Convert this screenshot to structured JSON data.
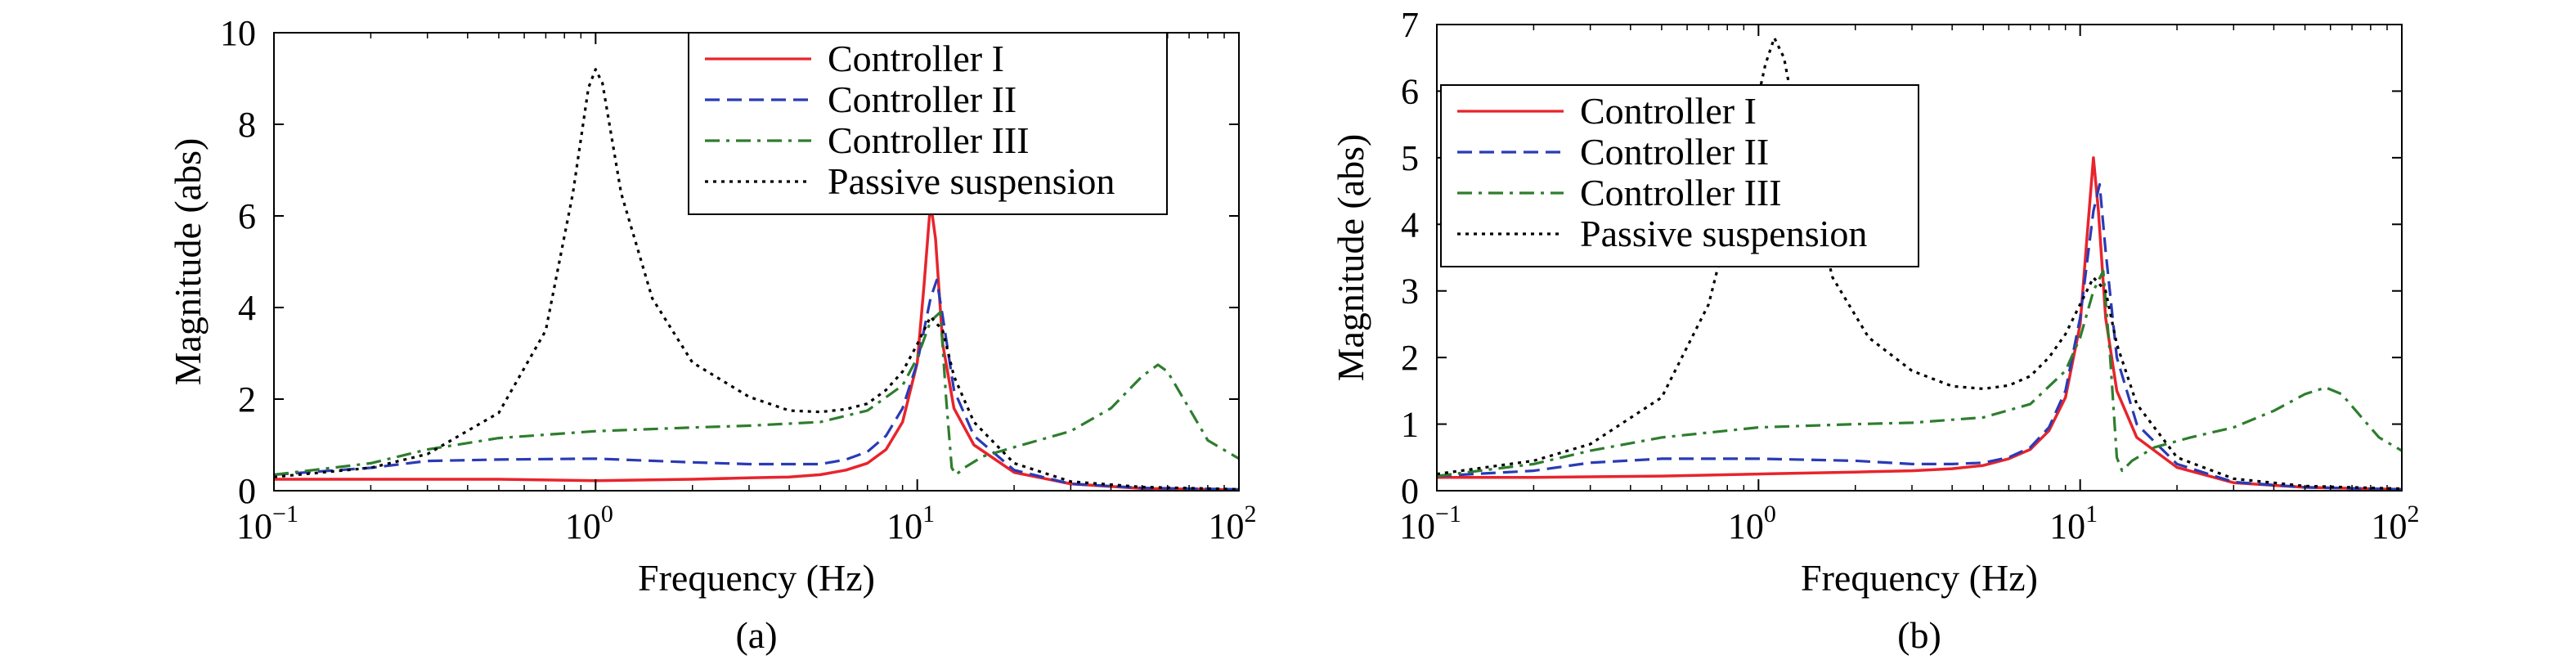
{
  "chart_data": [
    {
      "type": "line",
      "panel_label": "(a)",
      "xlabel": "Frequency (Hz)",
      "ylabel": "Magnitude (abs)",
      "xscale": "log",
      "xlim": [
        0.1,
        100
      ],
      "ylim": [
        0,
        10
      ],
      "xticks": [
        0.1,
        1,
        10,
        100
      ],
      "xtick_labels": [
        {
          "base": "10",
          "exp": "−1"
        },
        {
          "base": "10",
          "exp": "0"
        },
        {
          "base": "10",
          "exp": "1"
        },
        {
          "base": "10",
          "exp": "2"
        }
      ],
      "yticks": [
        0,
        2,
        4,
        6,
        8,
        10
      ],
      "ytick_labels": [
        "0",
        "2",
        "4",
        "6",
        "8",
        "10"
      ],
      "grid": false,
      "legend_position": "top-right",
      "series": [
        {
          "name": "Controller I",
          "color": "#e8242c",
          "dash": "solid",
          "points": [
            [
              0.1,
              0.25
            ],
            [
              0.2,
              0.25
            ],
            [
              0.5,
              0.25
            ],
            [
              1,
              0.22
            ],
            [
              2,
              0.25
            ],
            [
              3,
              0.28
            ],
            [
              4,
              0.3
            ],
            [
              5,
              0.35
            ],
            [
              6,
              0.45
            ],
            [
              7,
              0.6
            ],
            [
              8,
              0.9
            ],
            [
              9,
              1.5
            ],
            [
              10,
              2.8
            ],
            [
              10.5,
              4.5
            ],
            [
              11,
              6.3
            ],
            [
              11.4,
              5.5
            ],
            [
              12,
              3.2
            ],
            [
              13,
              1.8
            ],
            [
              15,
              1.0
            ],
            [
              20,
              0.4
            ],
            [
              30,
              0.15
            ],
            [
              50,
              0.05
            ],
            [
              100,
              0.02
            ]
          ]
        },
        {
          "name": "Controller II",
          "color": "#2a3bb5",
          "dash": "dashed",
          "points": [
            [
              0.1,
              0.35
            ],
            [
              0.2,
              0.5
            ],
            [
              0.3,
              0.65
            ],
            [
              0.5,
              0.68
            ],
            [
              1,
              0.7
            ],
            [
              2,
              0.62
            ],
            [
              3,
              0.58
            ],
            [
              5,
              0.58
            ],
            [
              6,
              0.68
            ],
            [
              7,
              0.85
            ],
            [
              8,
              1.2
            ],
            [
              9,
              1.8
            ],
            [
              10,
              2.8
            ],
            [
              11,
              4.2
            ],
            [
              11.5,
              4.6
            ],
            [
              12,
              3.8
            ],
            [
              13,
              2.2
            ],
            [
              15,
              1.2
            ],
            [
              20,
              0.45
            ],
            [
              30,
              0.15
            ],
            [
              50,
              0.06
            ],
            [
              100,
              0.03
            ]
          ]
        },
        {
          "name": "Controller III",
          "color": "#2e7d2e",
          "dash": "dashdot",
          "points": [
            [
              0.1,
              0.35
            ],
            [
              0.2,
              0.6
            ],
            [
              0.3,
              0.9
            ],
            [
              0.5,
              1.15
            ],
            [
              1,
              1.3
            ],
            [
              2,
              1.38
            ],
            [
              3,
              1.42
            ],
            [
              5,
              1.5
            ],
            [
              7,
              1.75
            ],
            [
              9,
              2.3
            ],
            [
              10,
              2.9
            ],
            [
              11,
              3.7
            ],
            [
              11.8,
              3.9
            ],
            [
              12.3,
              2.0
            ],
            [
              12.8,
              0.5
            ],
            [
              13.2,
              0.35
            ],
            [
              14,
              0.5
            ],
            [
              16,
              0.75
            ],
            [
              20,
              0.95
            ],
            [
              30,
              1.3
            ],
            [
              40,
              1.8
            ],
            [
              50,
              2.5
            ],
            [
              56,
              2.75
            ],
            [
              60,
              2.6
            ],
            [
              70,
              1.8
            ],
            [
              80,
              1.1
            ],
            [
              100,
              0.7
            ]
          ]
        },
        {
          "name": "Passive suspension",
          "color": "#000000",
          "dash": "dotted",
          "points": [
            [
              0.1,
              0.3
            ],
            [
              0.2,
              0.5
            ],
            [
              0.3,
              0.8
            ],
            [
              0.5,
              1.7
            ],
            [
              0.7,
              3.5
            ],
            [
              0.85,
              6.5
            ],
            [
              0.95,
              8.8
            ],
            [
              1,
              9.2
            ],
            [
              1.05,
              8.9
            ],
            [
              1.2,
              6.5
            ],
            [
              1.5,
              4.2
            ],
            [
              2,
              2.8
            ],
            [
              3,
              2.05
            ],
            [
              4,
              1.75
            ],
            [
              5,
              1.72
            ],
            [
              6,
              1.78
            ],
            [
              7,
              1.9
            ],
            [
              8,
              2.2
            ],
            [
              9,
              2.6
            ],
            [
              10,
              3.2
            ],
            [
              11,
              3.8
            ],
            [
              12,
              3.5
            ],
            [
              13,
              2.5
            ],
            [
              15,
              1.5
            ],
            [
              20,
              0.6
            ],
            [
              30,
              0.2
            ],
            [
              50,
              0.08
            ],
            [
              100,
              0.03
            ]
          ]
        }
      ]
    },
    {
      "type": "line",
      "panel_label": "(b)",
      "xlabel": "Frequency (Hz)",
      "ylabel": "Magnitude (abs)",
      "xscale": "log",
      "xlim": [
        0.1,
        100
      ],
      "ylim": [
        0,
        7
      ],
      "xticks": [
        0.1,
        1,
        10,
        100
      ],
      "xtick_labels": [
        {
          "base": "10",
          "exp": "−1"
        },
        {
          "base": "10",
          "exp": "0"
        },
        {
          "base": "10",
          "exp": "1"
        },
        {
          "base": "10",
          "exp": "2"
        }
      ],
      "yticks": [
        0,
        1,
        2,
        3,
        4,
        5,
        6,
        7
      ],
      "ytick_labels": [
        "0",
        "1",
        "2",
        "3",
        "4",
        "5",
        "6",
        "7"
      ],
      "grid": false,
      "legend_position": "top-left",
      "series": [
        {
          "name": "Controller I",
          "color": "#e8242c",
          "dash": "solid",
          "points": [
            [
              0.1,
              0.2
            ],
            [
              0.2,
              0.2
            ],
            [
              0.5,
              0.22
            ],
            [
              1,
              0.25
            ],
            [
              2,
              0.28
            ],
            [
              3,
              0.3
            ],
            [
              4,
              0.33
            ],
            [
              5,
              0.38
            ],
            [
              6,
              0.48
            ],
            [
              7,
              0.62
            ],
            [
              8,
              0.9
            ],
            [
              9,
              1.4
            ],
            [
              10,
              2.5
            ],
            [
              10.5,
              3.8
            ],
            [
              11,
              5.0
            ],
            [
              11.4,
              4.2
            ],
            [
              12,
              2.6
            ],
            [
              13,
              1.5
            ],
            [
              15,
              0.8
            ],
            [
              20,
              0.35
            ],
            [
              30,
              0.12
            ],
            [
              50,
              0.05
            ],
            [
              100,
              0.02
            ]
          ]
        },
        {
          "name": "Controller II",
          "color": "#2a3bb5",
          "dash": "dashed",
          "points": [
            [
              0.1,
              0.22
            ],
            [
              0.2,
              0.3
            ],
            [
              0.3,
              0.42
            ],
            [
              0.5,
              0.48
            ],
            [
              1,
              0.48
            ],
            [
              2,
              0.45
            ],
            [
              3,
              0.4
            ],
            [
              4,
              0.4
            ],
            [
              5,
              0.42
            ],
            [
              6,
              0.5
            ],
            [
              7,
              0.65
            ],
            [
              8,
              0.95
            ],
            [
              9,
              1.5
            ],
            [
              10,
              2.6
            ],
            [
              11,
              4.2
            ],
            [
              11.5,
              4.6
            ],
            [
              12,
              3.6
            ],
            [
              13,
              2.0
            ],
            [
              15,
              1.0
            ],
            [
              20,
              0.4
            ],
            [
              30,
              0.13
            ],
            [
              50,
              0.05
            ],
            [
              100,
              0.02
            ]
          ]
        },
        {
          "name": "Controller III",
          "color": "#2e7d2e",
          "dash": "dashdot",
          "points": [
            [
              0.1,
              0.22
            ],
            [
              0.2,
              0.4
            ],
            [
              0.3,
              0.6
            ],
            [
              0.5,
              0.8
            ],
            [
              1,
              0.95
            ],
            [
              2,
              1.0
            ],
            [
              3,
              1.02
            ],
            [
              5,
              1.1
            ],
            [
              7,
              1.3
            ],
            [
              9,
              1.8
            ],
            [
              10,
              2.3
            ],
            [
              11,
              3.0
            ],
            [
              11.8,
              3.3
            ],
            [
              12.4,
              2.0
            ],
            [
              13,
              0.5
            ],
            [
              13.5,
              0.3
            ],
            [
              14.5,
              0.45
            ],
            [
              17,
              0.65
            ],
            [
              22,
              0.8
            ],
            [
              30,
              0.95
            ],
            [
              40,
              1.2
            ],
            [
              50,
              1.45
            ],
            [
              58,
              1.55
            ],
            [
              65,
              1.45
            ],
            [
              75,
              1.1
            ],
            [
              85,
              0.8
            ],
            [
              100,
              0.6
            ]
          ]
        },
        {
          "name": "Passive suspension",
          "color": "#000000",
          "dash": "dotted",
          "points": [
            [
              0.1,
              0.25
            ],
            [
              0.2,
              0.45
            ],
            [
              0.3,
              0.7
            ],
            [
              0.5,
              1.4
            ],
            [
              0.7,
              2.8
            ],
            [
              0.9,
              4.9
            ],
            [
              1.05,
              6.4
            ],
            [
              1.12,
              6.8
            ],
            [
              1.2,
              6.5
            ],
            [
              1.4,
              4.8
            ],
            [
              1.7,
              3.2
            ],
            [
              2.2,
              2.3
            ],
            [
              3,
              1.8
            ],
            [
              4,
              1.57
            ],
            [
              5,
              1.53
            ],
            [
              6,
              1.58
            ],
            [
              7,
              1.72
            ],
            [
              8,
              2.0
            ],
            [
              9,
              2.35
            ],
            [
              10,
              2.8
            ],
            [
              11,
              3.2
            ],
            [
              12,
              3.0
            ],
            [
              13,
              2.2
            ],
            [
              15,
              1.3
            ],
            [
              20,
              0.5
            ],
            [
              30,
              0.18
            ],
            [
              50,
              0.07
            ],
            [
              100,
              0.03
            ]
          ]
        }
      ]
    }
  ]
}
